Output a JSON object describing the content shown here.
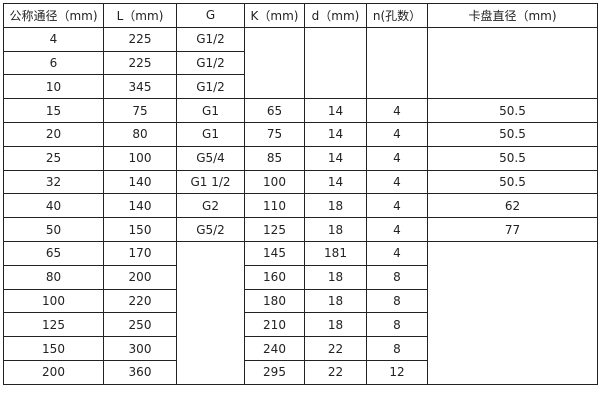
{
  "headers": [
    "公称通径（mm)",
    "L（mm)",
    "G",
    "K（mm)",
    "d（mm)",
    "n(孔数）",
    "卡盘直径（mm)"
  ],
  "rows": [
    [
      "4",
      "225",
      "G1/2",
      "",
      "",
      "",
      ""
    ],
    [
      "6",
      "225",
      "G1/2",
      "",
      "",
      "",
      ""
    ],
    [
      "10",
      "345",
      "G1/2",
      "",
      "",
      "",
      ""
    ],
    [
      "15",
      "75",
      "G1",
      "65",
      "14",
      "4",
      "50.5"
    ],
    [
      "20",
      "80",
      "G1",
      "75",
      "14",
      "4",
      "50.5"
    ],
    [
      "25",
      "100",
      "G5/4",
      "85",
      "14",
      "4",
      "50.5"
    ],
    [
      "32",
      "140",
      "G1  1/2",
      "100",
      "14",
      "4",
      "50.5"
    ],
    [
      "40",
      "140",
      "G2",
      "110",
      "18",
      "4",
      "62"
    ],
    [
      "50",
      "150",
      "G5/2",
      "125",
      "18",
      "4",
      "77"
    ],
    [
      "65",
      "170",
      "",
      "145",
      "181",
      "4",
      ""
    ],
    [
      "80",
      "200",
      "",
      "160",
      "18",
      "8",
      ""
    ],
    [
      "100",
      "220",
      "",
      "180",
      "18",
      "8",
      ""
    ],
    [
      "125",
      "250",
      "",
      "210",
      "18",
      "8",
      ""
    ],
    [
      "150",
      "300",
      "",
      "240",
      "22",
      "8",
      ""
    ],
    [
      "200",
      "360",
      "",
      "295",
      "22",
      "12",
      ""
    ]
  ]
}
